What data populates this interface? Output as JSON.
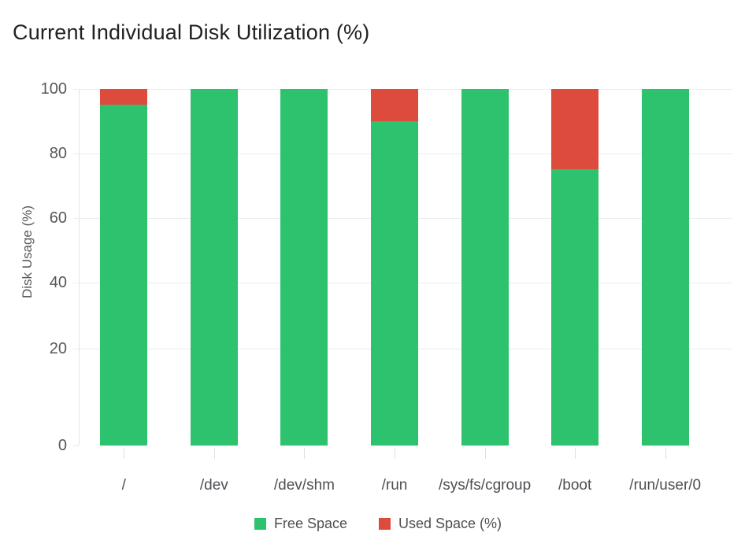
{
  "chart_data": {
    "type": "bar",
    "stacked": true,
    "title": "Current Individual Disk Utilization (%)",
    "ylabel": "Disk Usage (%)",
    "xlabel": "",
    "categories": [
      "/",
      "/dev",
      "/dev/shm",
      "/run",
      "/sys/fs/cgroup",
      "/boot",
      "/run/user/0"
    ],
    "series": [
      {
        "name": "Free Space",
        "color": "#2dc26e",
        "values": [
          95,
          100,
          100,
          90,
          100,
          75,
          100
        ]
      },
      {
        "name": "Used Space (%)",
        "color": "#dc4b3c",
        "values": [
          5,
          0,
          0,
          10,
          0,
          25,
          0
        ]
      }
    ],
    "yticks": [
      100,
      80,
      60,
      40,
      20,
      0
    ],
    "ylim": [
      0,
      100
    ],
    "grid": true,
    "legend_position": "bottom"
  }
}
